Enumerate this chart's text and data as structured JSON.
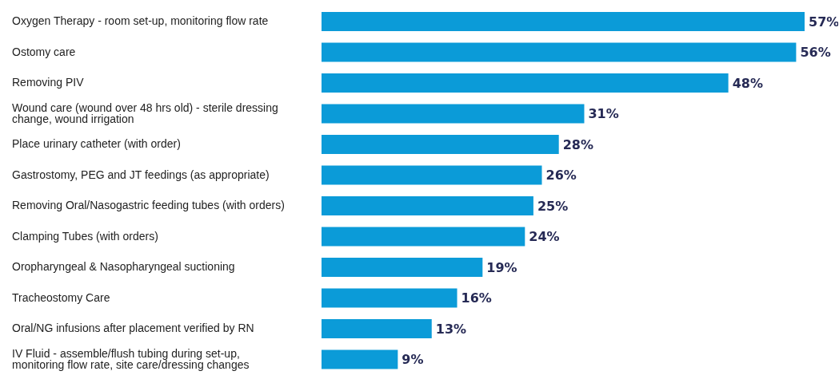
{
  "chart_data": {
    "type": "bar",
    "orientation": "horizontal",
    "color": "#0b9bd8",
    "value_labels": [
      "57%",
      "56%",
      "48%",
      "31%",
      "28%",
      "26%",
      "25%",
      "24%",
      "19%",
      "16%",
      "13%",
      "9%"
    ],
    "categories": [
      "Oxygen Therapy - room set-up, monitoring flow rate",
      "Ostomy care",
      "Removing PIV",
      "Wound care (wound over 48 hrs old) - sterile dressing change, wound irrigation",
      "Place urinary catheter (with order)",
      "Gastrostomy, PEG and JT feedings (as appropriate)",
      "Removing Oral/Nasogastric feeding tubes (with orders)",
      "Clamping Tubes (with orders)",
      "Oropharyngeal & Nasopharyngeal suctioning",
      "Tracheostomy Care",
      "Oral/NG infusions after placement verified by RN",
      "IV Fluid - assemble/flush tubing during set-up, monitoring flow rate, site care/dressing changes"
    ],
    "values": [
      57,
      56,
      48,
      31,
      28,
      26,
      25,
      24,
      19,
      16,
      13,
      9
    ]
  }
}
